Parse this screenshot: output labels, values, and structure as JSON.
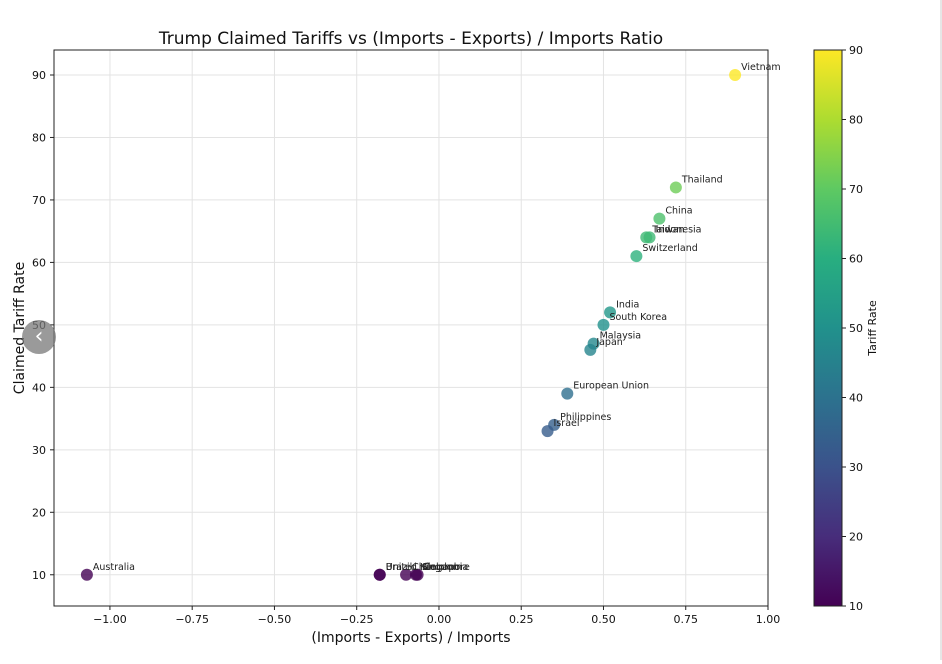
{
  "chart_data": {
    "type": "scatter",
    "title": "Trump Claimed Tariffs vs (Imports - Exports) / Imports Ratio",
    "xlabel": "(Imports - Exports) / Imports",
    "ylabel": "Claimed Tariff Rate",
    "xlim": [
      -1.17,
      1.0
    ],
    "ylim": [
      5,
      94
    ],
    "xticks": [
      -1.0,
      -0.75,
      -0.5,
      -0.25,
      0.0,
      0.25,
      0.5,
      0.75,
      1.0
    ],
    "xtick_labels": [
      "−1.00",
      "−0.75",
      "−0.50",
      "−0.25",
      "0.00",
      "0.25",
      "0.50",
      "0.75",
      "1.00"
    ],
    "yticks": [
      10,
      20,
      30,
      40,
      50,
      60,
      70,
      80,
      90
    ],
    "ytick_labels": [
      "10",
      "20",
      "30",
      "40",
      "50",
      "60",
      "70",
      "80",
      "90"
    ],
    "grid": true,
    "colormap": "viridis",
    "colorbar": {
      "label": "Tariff Rate",
      "range": [
        10,
        90
      ],
      "ticks": [
        10,
        20,
        30,
        40,
        50,
        60,
        70,
        80,
        90
      ],
      "tick_labels": [
        "10",
        "20",
        "30",
        "40",
        "50",
        "60",
        "70",
        "80",
        "90"
      ]
    },
    "points": [
      {
        "label": "Vietnam",
        "x": 0.9,
        "y": 90
      },
      {
        "label": "Thailand",
        "x": 0.72,
        "y": 72
      },
      {
        "label": "China",
        "x": 0.67,
        "y": 67
      },
      {
        "label": "Taiwan",
        "x": 0.63,
        "y": 64
      },
      {
        "label": "Indonesia",
        "x": 0.64,
        "y": 64
      },
      {
        "label": "Switzerland",
        "x": 0.6,
        "y": 61
      },
      {
        "label": "India",
        "x": 0.52,
        "y": 52
      },
      {
        "label": "South Korea",
        "x": 0.5,
        "y": 50
      },
      {
        "label": "Malaysia",
        "x": 0.47,
        "y": 47
      },
      {
        "label": "Japan",
        "x": 0.46,
        "y": 46
      },
      {
        "label": "European Union",
        "x": 0.39,
        "y": 39
      },
      {
        "label": "Philippines",
        "x": 0.35,
        "y": 34
      },
      {
        "label": "Israel",
        "x": 0.33,
        "y": 33
      },
      {
        "label": "Australia",
        "x": -1.07,
        "y": 10
      },
      {
        "label": "Brazil",
        "x": -0.18,
        "y": 10
      },
      {
        "label": "United Kingdom",
        "x": -0.18,
        "y": 10
      },
      {
        "label": "Chile",
        "x": -0.1,
        "y": 10
      },
      {
        "label": "Singapore",
        "x": -0.07,
        "y": 10
      },
      {
        "label": "Colombia",
        "x": -0.065,
        "y": 10
      }
    ]
  }
}
